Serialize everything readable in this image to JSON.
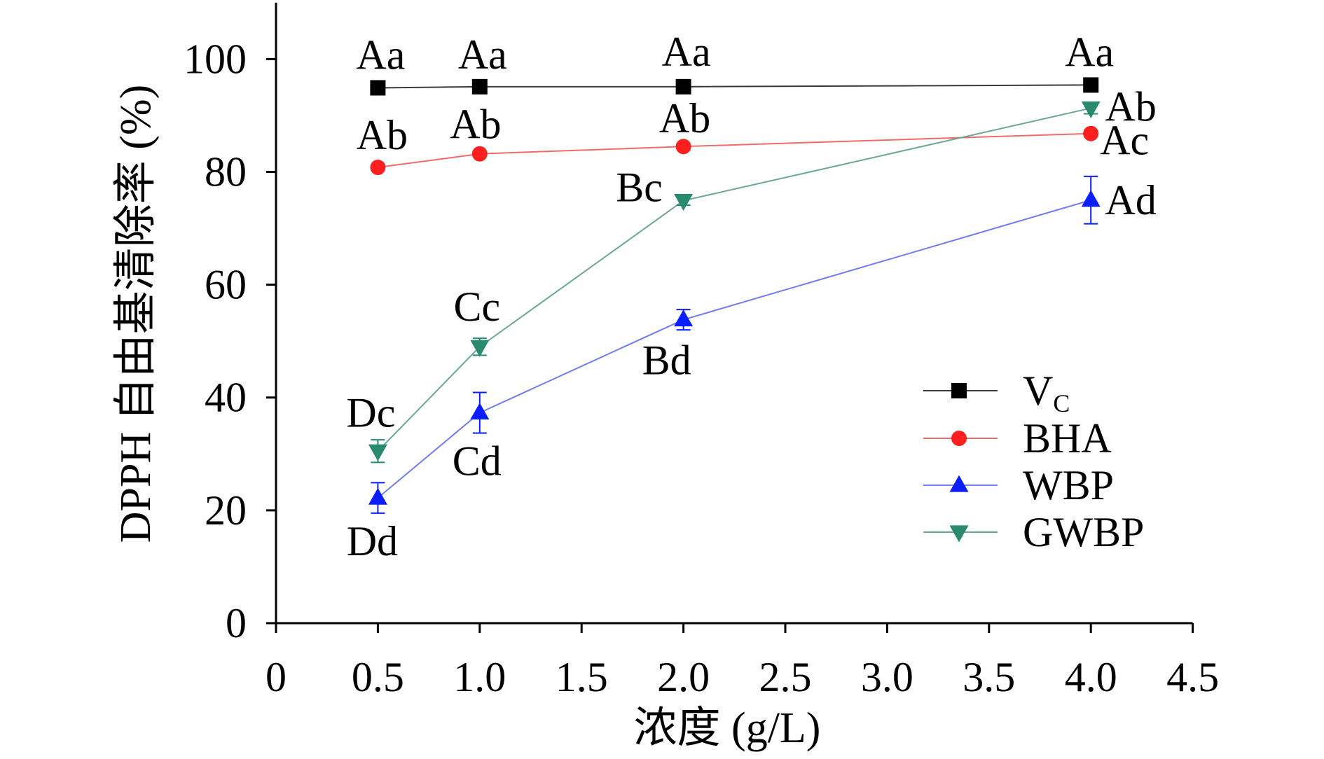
{
  "chart_data": {
    "type": "line",
    "xlabel": "浓度 (g/L)",
    "ylabel": "DPPH 自由基清除率 (%)",
    "xlim": [
      0,
      4.5
    ],
    "ylim": [
      0,
      110
    ],
    "x_ticks": [
      0,
      0.5,
      1.0,
      1.5,
      2.0,
      2.5,
      3.0,
      3.5,
      4.0,
      4.5
    ],
    "x_tick_labels": [
      "0",
      "0.5",
      "1.0",
      "1.5",
      "2.0",
      "2.5",
      "3.0",
      "3.5",
      "4.0",
      "4.5"
    ],
    "y_ticks": [
      0,
      20,
      40,
      60,
      80,
      100
    ],
    "y_tick_labels": [
      "0",
      "20",
      "40",
      "60",
      "80",
      "100"
    ],
    "grid": false,
    "legend_position": "lower-right",
    "x": [
      0.5,
      1.0,
      2.0,
      4.0
    ],
    "series": [
      {
        "name": "V",
        "name_subscript": "C",
        "marker": "square",
        "color": "#000000",
        "line_color": "#3a3a3a",
        "values": [
          94.9,
          95.1,
          95.1,
          95.4
        ],
        "error": [
          0.3,
          0.3,
          0.3,
          0.3
        ],
        "labels": [
          "Aa",
          "Aa",
          "Aa",
          "Aa"
        ]
      },
      {
        "name": "BHA",
        "marker": "circle",
        "color": "#ff1f1f",
        "line_color": "#f26b6b",
        "values": [
          80.8,
          83.2,
          84.5,
          86.8
        ],
        "error": [
          0.5,
          0.4,
          0.4,
          0.5
        ],
        "labels": [
          "Ab",
          "Ab",
          "Ab",
          "Ac"
        ]
      },
      {
        "name": "WBP",
        "marker": "triangle-up",
        "color": "#0a1eff",
        "line_color": "#6f7cf5",
        "values": [
          22.2,
          37.3,
          53.8,
          75.0
        ],
        "error": [
          2.7,
          3.6,
          1.8,
          4.2
        ],
        "labels": [
          "Dd",
          "Cd",
          "Bd",
          "Ad"
        ]
      },
      {
        "name": "GWBP",
        "marker": "triangle-down",
        "color": "#2a8a6e",
        "line_color": "#6aa893",
        "values": [
          30.5,
          49.0,
          74.9,
          91.3
        ],
        "error": [
          2.0,
          1.5,
          0.8,
          1.0
        ],
        "labels": [
          "Dc",
          "Cc",
          "Bc",
          "Ab"
        ]
      }
    ]
  }
}
